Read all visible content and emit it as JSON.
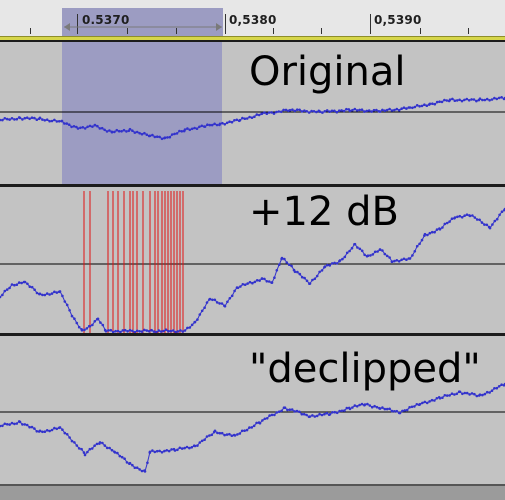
{
  "timeline": {
    "ticks": [
      "0.5370",
      "0,5380",
      "0,5390"
    ]
  },
  "tracks": [
    {
      "label": "Original"
    },
    {
      "label": "+12 dB"
    },
    {
      "label": "\"declipped\""
    }
  ],
  "colors": {
    "waveform": "#3333cc",
    "selection": "#9c9cc2",
    "clip_marker": "#e01010",
    "center_line": "#000000",
    "track_background": "#c3c3c3"
  }
}
